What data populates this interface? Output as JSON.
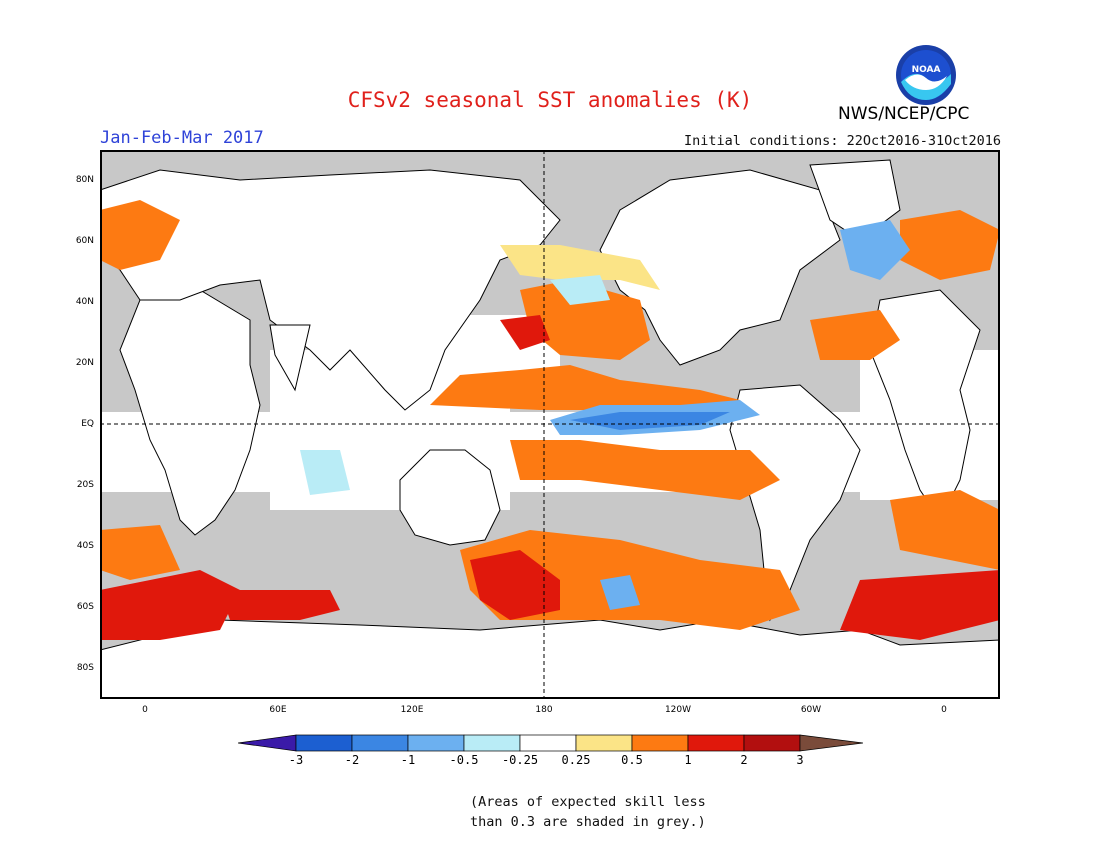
{
  "header": {
    "title": "CFSv2 seasonal SST anomalies (K)",
    "season": "Jan-Feb-Mar 2017",
    "initial_conditions": "Initial conditions: 22Oct2016-31Oct2016",
    "agency": "NWS/NCEP/CPC",
    "logo_text": "NOAA"
  },
  "map": {
    "y_ticks": [
      "80N",
      "60N",
      "40N",
      "20N",
      "EQ",
      "20S",
      "40S",
      "60S",
      "80S"
    ],
    "x_ticks": [
      "0",
      "60E",
      "120E",
      "180",
      "120W",
      "60W",
      "0"
    ],
    "land_color": "#ffffff",
    "no_skill_color": "#c8c8c8"
  },
  "colorbar": {
    "labels": [
      "-3",
      "-2",
      "-1",
      "-0.5",
      "-0.25",
      "0.25",
      "0.5",
      "1",
      "2",
      "3"
    ],
    "colors": [
      "#3a1aa8",
      "#1c5fd1",
      "#3b86e3",
      "#6cb0f0",
      "#b9ecf6",
      "#ffffff",
      "#fbe487",
      "#fd7a12",
      "#e0180c",
      "#b20f0f",
      "#7a4b3a"
    ]
  },
  "note": {
    "line1": "(Areas of expected skill less",
    "line2": "than 0.3 are shaded in grey.)"
  }
}
